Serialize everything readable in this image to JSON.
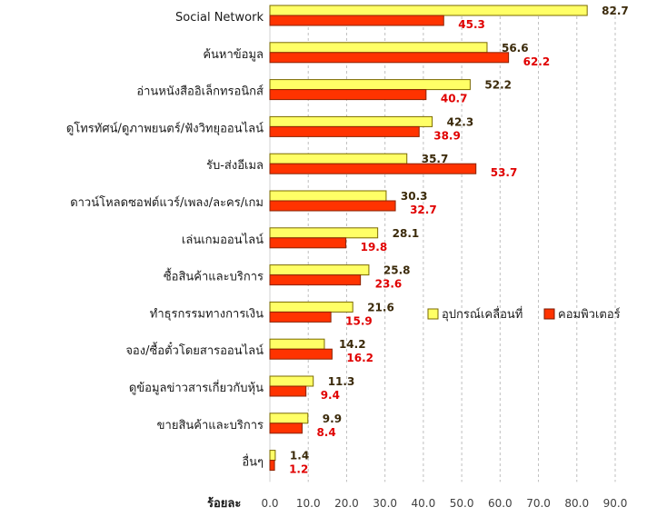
{
  "chart_data": {
    "type": "bar",
    "orientation": "horizontal",
    "title": "",
    "xlabel": "ร้อยละ",
    "ylabel": "",
    "xlim": [
      0,
      90
    ],
    "x_ticks": [
      "0.0",
      "10.0",
      "20.0",
      "30.0",
      "40.0",
      "50.0",
      "60.0",
      "70.0",
      "80.0",
      "90.0"
    ],
    "grid": "vertical dashed",
    "legend_position": "right",
    "categories": [
      "Social Network",
      "ค้นหาข้อมูล",
      "อ่านหนังสืออิเล็กทรอนิกส์",
      "ดูโทรทัศน์/ดูภาพยนตร์/ฟังวิทยุออนไลน์",
      "รับ-ส่งอีเมล",
      "ดาวน์โหลดซอฟต์แวร์/เพลง/ละคร/เกม",
      "เล่นเกมออนไลน์",
      "ซื้อสินค้าและบริการ",
      "ทำธุรกรรมทางการเงิน",
      "จอง/ซื้อตั๋วโดยสารออนไลน์",
      "ดูข้อมูลข่าวสารเกี่ยวกับหุ้น",
      "ขายสินค้าและบริการ",
      "อื่นๆ"
    ],
    "series": [
      {
        "name": "อุปกรณ์เคลื่อนที่",
        "color": "#ffff66",
        "labels": [
          "82.7",
          "56.6",
          "52.2",
          "42.3",
          "35.7",
          "30.3",
          "28.1",
          "25.8",
          "21.6",
          "14.2",
          "11.3",
          "9.9",
          "1.4"
        ],
        "values": [
          82.7,
          56.6,
          52.2,
          42.3,
          35.7,
          30.3,
          28.1,
          25.8,
          21.6,
          14.2,
          11.3,
          9.9,
          1.4
        ]
      },
      {
        "name": "คอมพิวเตอร์",
        "color": "#ff3300",
        "labels": [
          "45.3",
          "62.2",
          "40.7",
          "38.9",
          "53.7",
          "32.7",
          "19.8",
          "23.6",
          "15.9",
          "16.2",
          "9.4",
          "8.4",
          "1.2"
        ],
        "values": [
          45.3,
          62.2,
          40.7,
          38.9,
          53.7,
          32.7,
          19.8,
          23.6,
          15.9,
          16.2,
          9.4,
          8.4,
          1.2
        ]
      }
    ]
  }
}
